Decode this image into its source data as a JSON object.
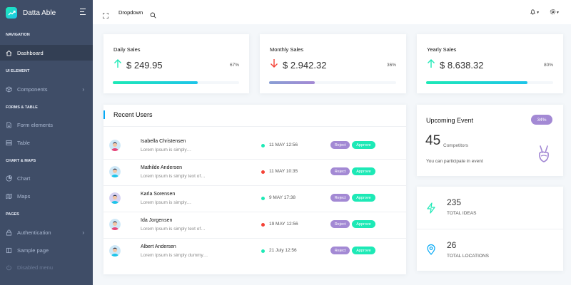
{
  "app": {
    "name": "Datta Able"
  },
  "colors": {
    "sidebar": "#3f4d67",
    "accent": "#1de9b6",
    "purple": "#a389d4",
    "danger": "#f44236",
    "info": "#04a9f5"
  },
  "sidebar": {
    "caption_navigation": "NAVIGATION",
    "dashboard": "Dashboard",
    "caption_ui": "UI ELEMENT",
    "components": "Components",
    "caption_forms": "FORMS & TABLE",
    "form_elements": "Form elements",
    "table": "Table",
    "caption_charts": "CHART & MAPS",
    "chart": "Chart",
    "maps": "Maps",
    "caption_pages": "PAGES",
    "authentication": "Authentication",
    "sample_page": "Sample page",
    "disabled_menu": "Disabled menu"
  },
  "header": {
    "dropdown": "Dropdown",
    "expand_icon": "expand-icon",
    "search_icon": "search-icon",
    "bell_icon": "bell-icon",
    "settings_icon": "gear-icon"
  },
  "stats": [
    {
      "title": "Daily Sales",
      "value": "$ 249.95",
      "percent": "67%",
      "progress": 0.67,
      "direction": "up"
    },
    {
      "title": "Monthly Sales",
      "value": "$ 2.942.32",
      "percent": "36%",
      "progress": 0.36,
      "direction": "down"
    },
    {
      "title": "Yearly Sales",
      "value": "$ 8.638.32",
      "percent": "80%",
      "progress": 0.8,
      "direction": "up"
    }
  ],
  "recent_users": {
    "title": "Recent Users",
    "reject_label": "Reject",
    "approve_label": "Approve",
    "rows": [
      {
        "name": "Isabella Christensen",
        "text": "Lorem Ipsum is simply…",
        "date": "11 MAY 12:56",
        "status": "online"
      },
      {
        "name": "Mathilde Andersen",
        "text": "Lorem Ipsum is simply text of…",
        "date": "11 MAY 10:35",
        "status": "offline"
      },
      {
        "name": "Karla Sorensen",
        "text": "Lorem Ipsum is simply…",
        "date": "9 MAY 17:38",
        "status": "online"
      },
      {
        "name": "Ida Jorgensen",
        "text": "Lorem Ipsum is simply text of…",
        "date": "19 MAY 12:56",
        "status": "offline"
      },
      {
        "name": "Albert Andersen",
        "text": "Lorem Ipsum is simply dummy…",
        "date": "21 July 12:56",
        "status": "online"
      }
    ]
  },
  "event": {
    "title": "Upcoming Event",
    "badge": "34%",
    "count": "45",
    "count_label": "Competitors",
    "text": "You can participate in event"
  },
  "totals": [
    {
      "number": "235",
      "label": "TOTAL IDEAS",
      "icon": "zap-icon"
    },
    {
      "number": "26",
      "label": "TOTAL LOCATIONS",
      "icon": "map-pin-icon"
    }
  ]
}
